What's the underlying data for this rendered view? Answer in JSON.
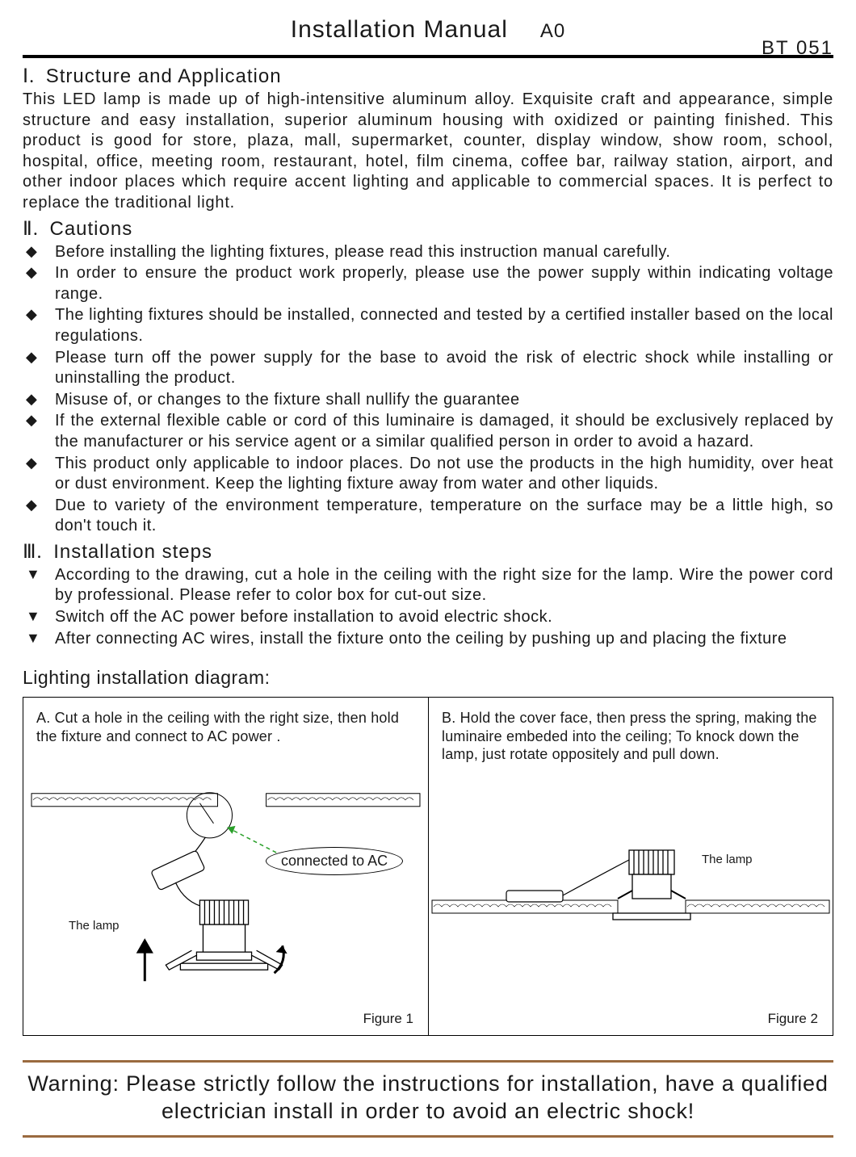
{
  "header": {
    "title": "Installation Manual",
    "revision": "A0",
    "product_code": "BT 051"
  },
  "section1": {
    "numeral": "Ⅰ.",
    "heading": "Structure and Application",
    "body": "This LED lamp is made up of high-intensitive aluminum alloy. Exquisite craft and appearance, simple structure and easy installation, superior aluminum housing with oxidized or painting finished. This product is good for store, plaza, mall, supermarket, counter, display window, show room, school, hospital, office, meeting room, restaurant, hotel, film cinema, coffee bar, railway station, airport, and other indoor places which require accent lighting and applicable to commercial spaces. It is perfect to replace the traditional light."
  },
  "section2": {
    "numeral": "Ⅱ.",
    "heading": "Cautions",
    "items": [
      "Before installing the lighting fixtures, please read this instruction manual carefully.",
      "In order to ensure the product work properly, please use the power supply within indicating voltage range.",
      "The lighting fixtures should be installed, connected and tested by a certified installer based on the local regulations.",
      "Please turn off the power supply for the base to avoid the risk of electric shock while installing or uninstalling the product.",
      "Misuse of, or changes to the fixture shall nullify the guarantee",
      "If the external flexible cable or cord of this luminaire is damaged, it should be exclusively replaced by the manufacturer or his service agent or a similar qualified person in order to avoid a hazard.",
      "This product only applicable to indoor places. Do not use the products in the high humidity, over heat or dust environment. Keep the lighting fixture away from water and other liquids.",
      "Due to variety of the environment temperature, temperature on the surface may be a little high, so don't touch it."
    ]
  },
  "section3": {
    "numeral": "Ⅲ.",
    "heading": "Installation steps",
    "items": [
      "According to the drawing, cut a hole in the ceiling with the right size for the lamp. Wire the power cord by professional. Please refer to color box for cut-out size.",
      "Switch off the AC power before installation to avoid electric shock.",
      "After connecting AC wires, install the fixture onto the ceiling by pushing up and placing the fixture"
    ]
  },
  "diagram": {
    "title": "Lighting installation diagram:",
    "panelA": {
      "caption": "A. Cut a hole in the ceiling with the right size, then hold the fixture and connect to AC power .",
      "ac_label": "connected to AC",
      "lamp_label": "The lamp",
      "figure": "Figure 1"
    },
    "panelB": {
      "caption": "B. Hold the cover face, then press the spring, making the luminaire embeded into the ceiling; To knock down the lamp, just rotate oppositely and pull down.",
      "lamp_label": "The lamp",
      "figure": "Figure 2"
    }
  },
  "warning": "Warning: Please strictly follow the instructions for installation, have a qualified electrician install in order to avoid an electric shock!",
  "style": {
    "rule_color": "#000000",
    "warning_rule_color": "#9a6a3f",
    "bullet_diamond": "◆",
    "bullet_triangle": "▼"
  }
}
